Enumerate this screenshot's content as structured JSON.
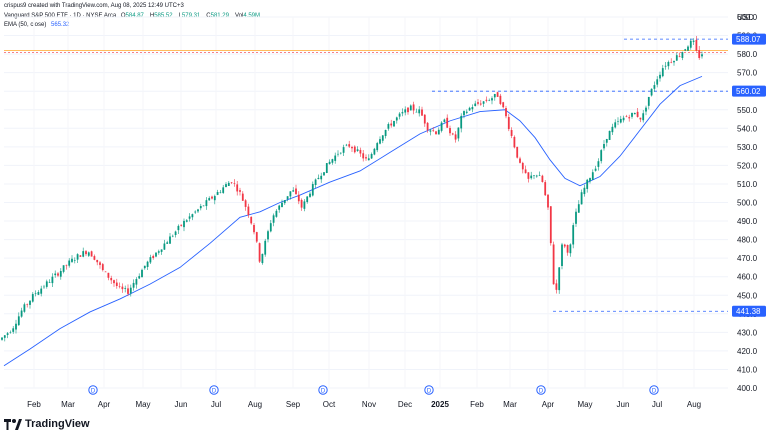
{
  "header": {
    "credit": "crispus9 created with TradingView.com, Aug 08, 2025 12:49 UTC+3",
    "symbol": "Vanguard S&P 500 ETF · 1D · NYSE Arca",
    "ohlc": [
      {
        "label": "O",
        "value": "584.87"
      },
      {
        "label": "H",
        "value": "585.52"
      },
      {
        "label": "L",
        "value": "579.31"
      },
      {
        "label": "C",
        "value": "581.29"
      },
      {
        "label": "Vol",
        "value": "4.59M"
      }
    ],
    "ema_label": "EMA (50, close)",
    "ema_value": "565.32"
  },
  "currency": "USD",
  "footer": {
    "brand": "TradingView"
  },
  "colors": {
    "up": "#089981",
    "down": "#f23645",
    "ema": "#2962ff",
    "tag": "#2962ff",
    "orange_line": "#ff9800"
  },
  "chart_data": {
    "type": "candlestick",
    "yaxis": {
      "min": 400,
      "max": 600,
      "ticks": [
        400,
        410,
        420,
        430,
        440,
        450,
        460,
        470,
        480,
        490,
        500,
        510,
        520,
        530,
        540,
        550,
        560,
        570,
        580,
        590,
        600
      ]
    },
    "xaxis_labels": [
      "Feb",
      "Mar",
      "Apr",
      "May",
      "Jun",
      "Jul",
      "Aug",
      "Sep",
      "Oct",
      "Nov",
      "Dec",
      "2025",
      "Feb",
      "Mar",
      "Apr",
      "May",
      "Jun",
      "Jul",
      "Aug"
    ],
    "dividend_markers": [
      "Mar",
      "Jun",
      "Sep",
      "Dec",
      "Mar",
      "Jun"
    ],
    "price_tags": [
      "588.07",
      "560.02",
      "441.38"
    ],
    "horizontal_levels": [
      588.07,
      560.02,
      441.38
    ],
    "current_price": 581.29,
    "price_path": [
      [
        0,
        426
      ],
      [
        12,
        432
      ],
      [
        22,
        442
      ],
      [
        35,
        451
      ],
      [
        48,
        457
      ],
      [
        60,
        463
      ],
      [
        70,
        468
      ],
      [
        80,
        472
      ],
      [
        88,
        474
      ],
      [
        95,
        470
      ],
      [
        103,
        463
      ],
      [
        112,
        458
      ],
      [
        120,
        453
      ],
      [
        128,
        452
      ],
      [
        135,
        458
      ],
      [
        145,
        466
      ],
      [
        158,
        474
      ],
      [
        170,
        481
      ],
      [
        185,
        490
      ],
      [
        200,
        497
      ],
      [
        215,
        504
      ],
      [
        225,
        509
      ],
      [
        232,
        512
      ],
      [
        240,
        505
      ],
      [
        248,
        495
      ],
      [
        255,
        483
      ],
      [
        260,
        468
      ],
      [
        265,
        478
      ],
      [
        272,
        492
      ],
      [
        282,
        500
      ],
      [
        292,
        507
      ],
      [
        298,
        502
      ],
      [
        302,
        497
      ],
      [
        310,
        506
      ],
      [
        320,
        515
      ],
      [
        330,
        522
      ],
      [
        340,
        528
      ],
      [
        350,
        531
      ],
      [
        358,
        527
      ],
      [
        368,
        522
      ],
      [
        378,
        534
      ],
      [
        390,
        542
      ],
      [
        400,
        547
      ],
      [
        410,
        551
      ],
      [
        420,
        549
      ],
      [
        428,
        540
      ],
      [
        436,
        538
      ],
      [
        445,
        544
      ],
      [
        455,
        533
      ],
      [
        462,
        547
      ],
      [
        472,
        552
      ],
      [
        482,
        554
      ],
      [
        490,
        556
      ],
      [
        498,
        558
      ],
      [
        505,
        548
      ],
      [
        512,
        535
      ],
      [
        520,
        520
      ],
      [
        528,
        512
      ],
      [
        535,
        516
      ],
      [
        542,
        512
      ],
      [
        548,
        496
      ],
      [
        552,
        470
      ],
      [
        555,
        445
      ],
      [
        558,
        462
      ],
      [
        563,
        480
      ],
      [
        568,
        472
      ],
      [
        575,
        492
      ],
      [
        582,
        505
      ],
      [
        590,
        514
      ],
      [
        598,
        522
      ],
      [
        606,
        535
      ],
      [
        615,
        542
      ],
      [
        625,
        546
      ],
      [
        635,
        548
      ],
      [
        642,
        545
      ],
      [
        648,
        556
      ],
      [
        656,
        566
      ],
      [
        664,
        574
      ],
      [
        672,
        577
      ],
      [
        680,
        580
      ],
      [
        688,
        585
      ],
      [
        693,
        587
      ],
      [
        698,
        578
      ],
      [
        703,
        581
      ]
    ],
    "ema_path": [
      [
        4,
        412
      ],
      [
        30,
        421
      ],
      [
        60,
        432
      ],
      [
        90,
        441
      ],
      [
        120,
        448
      ],
      [
        150,
        456
      ],
      [
        180,
        465
      ],
      [
        210,
        478
      ],
      [
        240,
        492
      ],
      [
        260,
        495
      ],
      [
        280,
        500
      ],
      [
        300,
        504
      ],
      [
        330,
        511
      ],
      [
        360,
        517
      ],
      [
        390,
        527
      ],
      [
        420,
        537
      ],
      [
        450,
        544
      ],
      [
        480,
        549
      ],
      [
        505,
        550
      ],
      [
        520,
        544
      ],
      [
        535,
        535
      ],
      [
        550,
        523
      ],
      [
        565,
        513
      ],
      [
        580,
        509
      ],
      [
        600,
        514
      ],
      [
        620,
        525
      ],
      [
        640,
        539
      ],
      [
        660,
        553
      ],
      [
        680,
        563
      ],
      [
        702,
        568
      ]
    ]
  }
}
